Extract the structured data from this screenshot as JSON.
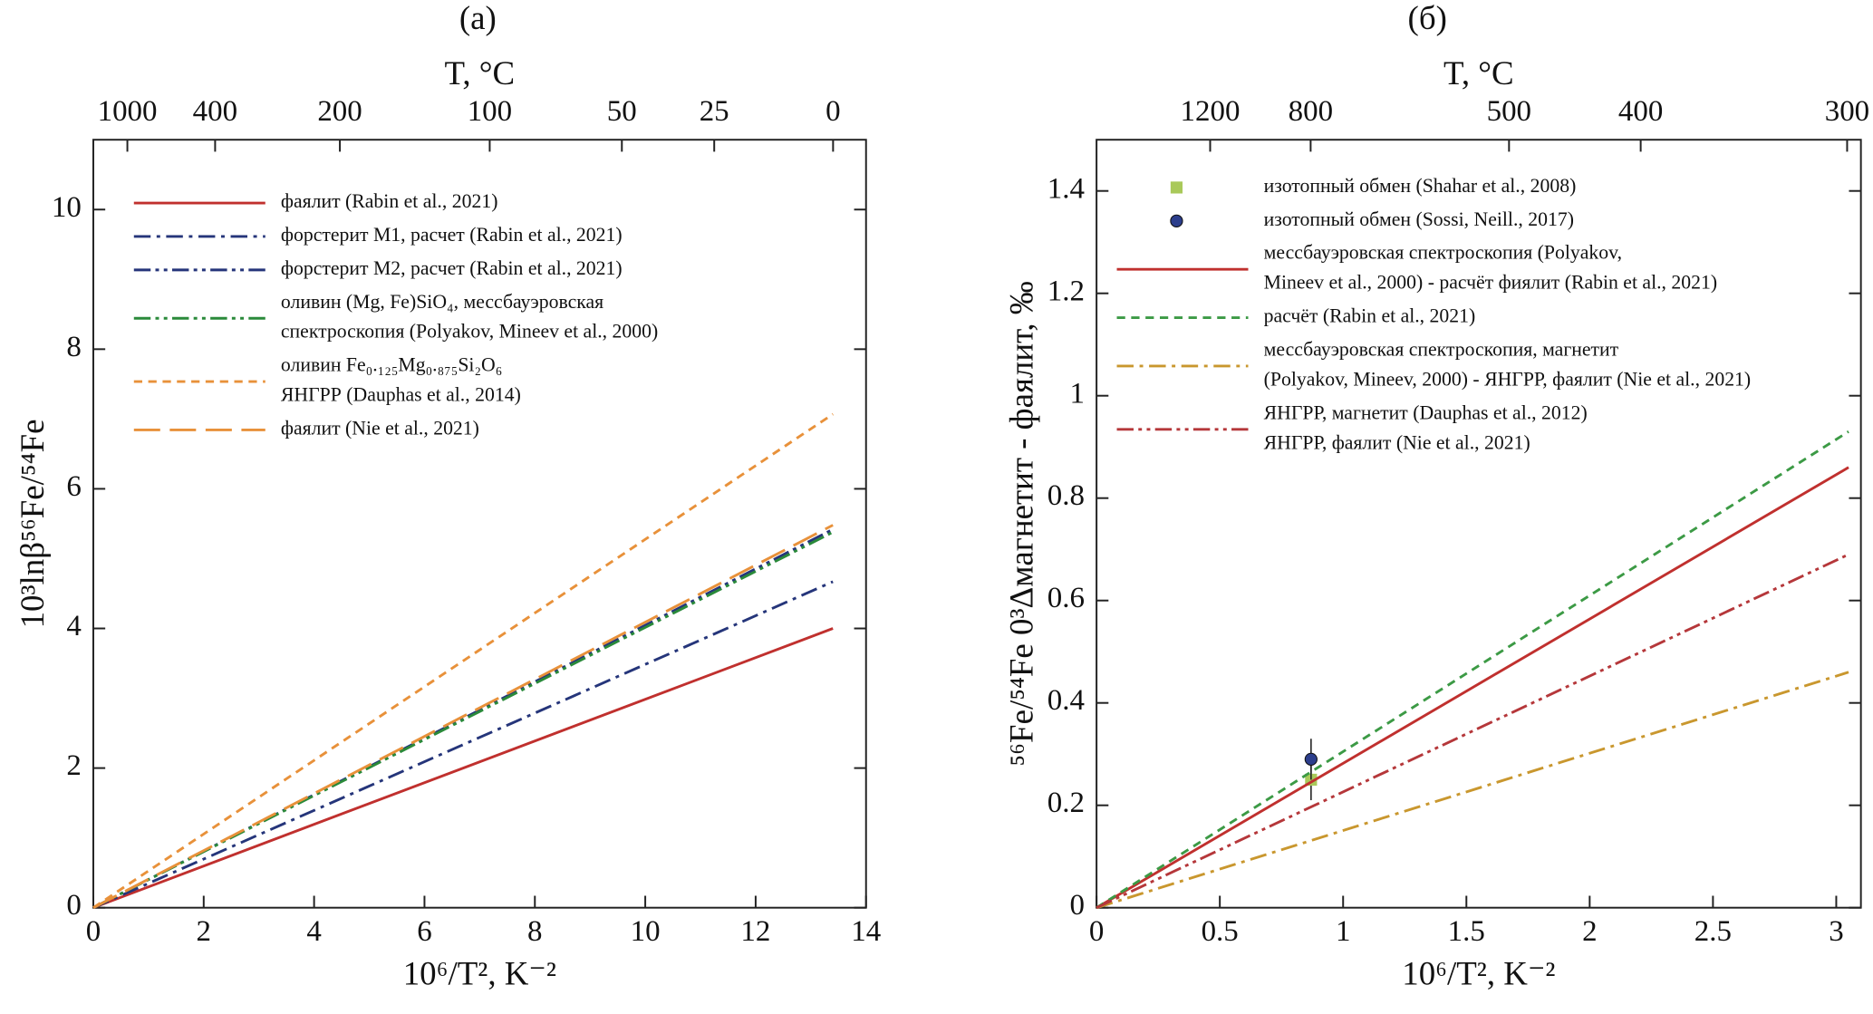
{
  "chart_data": [
    {
      "type": "line",
      "title": "(a)",
      "x_label": "10⁶/T², K⁻²",
      "y_label": "10³lnβ⁵⁶Fe/⁵⁴Fe",
      "top_axis_label": "T, °C",
      "top_ticks": [
        1000,
        400,
        200,
        100,
        50,
        25,
        0
      ],
      "xlim": [
        0,
        14
      ],
      "xticks": [
        0,
        2,
        4,
        6,
        8,
        10,
        12,
        14
      ],
      "ylim": [
        0,
        11
      ],
      "yticks": [
        0,
        2,
        4,
        6,
        8,
        10
      ],
      "series": [
        {
          "name": "фаялит (Rabin et al., 2021)",
          "color": "#c0302e",
          "dash": "solid",
          "x": [
            0,
            13.4
          ],
          "values": [
            0,
            4.0
          ]
        },
        {
          "name": "форстерит M1, расчет (Rabin et al., 2021)",
          "color": "#25357a",
          "dash": "dashdot",
          "x": [
            0,
            13.4
          ],
          "values": [
            0,
            4.67
          ]
        },
        {
          "name": "форстерит M2, расчет (Rabin et al., 2021)",
          "color": "#25357a",
          "dash": "dashdotdot",
          "x": [
            0,
            13.4
          ],
          "values": [
            0,
            5.42
          ]
        },
        {
          "name": "оливин (Mg, Fe)SiO₄, мессбауэровская\nспектроскопия (Polyakov, Mineev et al., 2000)",
          "color": "#2a8a3a",
          "dash": "dashdotdot",
          "x": [
            0,
            13.4
          ],
          "values": [
            0,
            5.38
          ]
        },
        {
          "name": "оливин Fe₀.₁₂₅Mg₀.₈₇₅Si₂O₆\nЯНГРР (Dauphas et al., 2014)",
          "color": "#e8913a",
          "dash": "dashed",
          "x": [
            0,
            13.4
          ],
          "values": [
            0,
            7.07
          ]
        },
        {
          "name": "фаялит (Nie et al., 2021)",
          "color": "#e8913a",
          "dash": "longdash",
          "x": [
            0,
            13.4
          ],
          "values": [
            0,
            5.48
          ]
        }
      ]
    },
    {
      "type": "line",
      "title": "(б)",
      "x_label": "10⁶/T², K⁻²",
      "y_label": "⁵⁶Fe/⁵⁴Fe 0³Δмагнетит - фаялит, ‰",
      "top_axis_label": "T, °C",
      "top_ticks": [
        1200,
        800,
        500,
        400,
        300
      ],
      "xlim": [
        0,
        3.1
      ],
      "xticks": [
        0,
        0.5,
        1,
        1.5,
        2,
        2.5,
        3
      ],
      "ylim": [
        0,
        1.5
      ],
      "yticks": [
        0,
        0.2,
        0.4,
        0.6,
        0.8,
        1,
        1.2,
        1.4
      ],
      "series": [
        {
          "name": "изотопный обмен (Shahar et al., 2008)",
          "color": "#a9c95a",
          "marker": "square",
          "x": [
            0.87
          ],
          "values": [
            0.25
          ],
          "errors": [
            0.04
          ]
        },
        {
          "name": "изотопный обмен (Sossi, Neill., 2017)",
          "color": "#2c3e8c",
          "marker": "circle",
          "x": [
            0.87
          ],
          "values": [
            0.29
          ],
          "errors": [
            0.04
          ]
        },
        {
          "name": "мессбауэровская спектроскопия (Polyakov,\nMineev et al., 2000) -   расчёт фиялит (Rabin et al., 2021)",
          "color": "#c0302e",
          "dash": "solid",
          "x": [
            0,
            3.05
          ],
          "values": [
            0,
            0.86
          ]
        },
        {
          "name": "расчёт (Rabin et al., 2021)",
          "color": "#3c9a45",
          "dash": "dashed",
          "x": [
            0,
            3.05
          ],
          "values": [
            0,
            0.93
          ]
        },
        {
          "name": "мессбауэровская спектроскопия, магнетит\n(Polyakov, Mineev, 2000) -   ЯНГРР, фаялит (Nie et al., 2021)",
          "color": "#c9972e",
          "dash": "dashdot",
          "x": [
            0,
            3.05
          ],
          "values": [
            0,
            0.46
          ]
        },
        {
          "name": "ЯНГРР, магнетит (Dauphas et al., 2012)\nЯНГРР, фаялит (Nie et al., 2021)",
          "color": "#b5373a",
          "dash": "dashdotdot",
          "x": [
            0,
            3.05
          ],
          "values": [
            0,
            0.69
          ]
        }
      ]
    }
  ]
}
